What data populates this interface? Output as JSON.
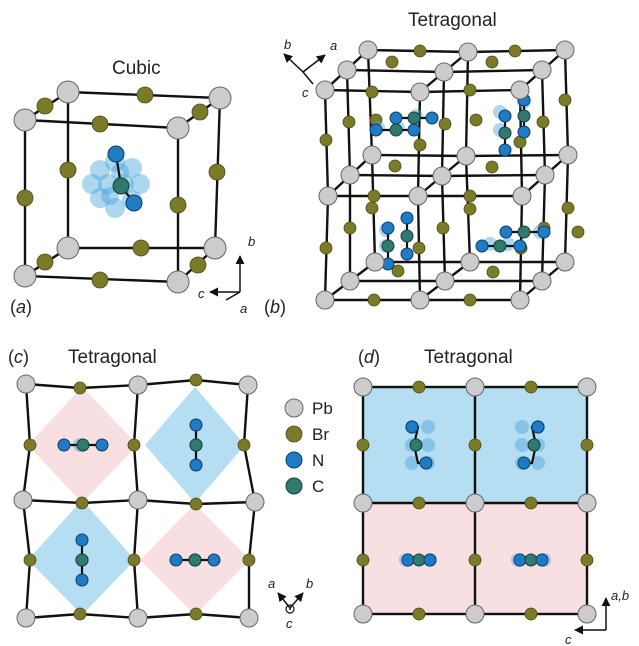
{
  "panels": {
    "a": {
      "label_open": "(",
      "letter": "a",
      "label_close": ")",
      "title": "Cubic",
      "axes": {
        "b": "b",
        "c": "c",
        "a": "a"
      }
    },
    "b": {
      "label_open": "(",
      "letter": "b",
      "label_close": ")",
      "title": "Tetragonal",
      "axes": {
        "b": "b",
        "a": "a",
        "c": "c"
      }
    },
    "c": {
      "label_open": "(",
      "letter": "c",
      "label_close": ")",
      "title": "Tetragonal",
      "axes": {
        "a": "a",
        "b": "b",
        "c": "c"
      }
    },
    "d": {
      "label_open": "(",
      "letter": "d",
      "label_close": ")",
      "title": "Tetragonal",
      "axes": {
        "ab": "a,b",
        "c": "c"
      }
    }
  },
  "legend": [
    {
      "label": "Pb",
      "color": "#cccccc"
    },
    {
      "label": "Br",
      "color": "#7b7a29"
    },
    {
      "label": "N",
      "color": "#1f7bc4"
    },
    {
      "label": "C",
      "color": "#2f7a6e"
    }
  ],
  "colors": {
    "pb": "#cccccc",
    "br": "#7b7a29",
    "n": "#1f7bc4",
    "c": "#2f7a6e",
    "blue_tile": "#b6def2",
    "pink_tile": "#f7dfe2",
    "ghost": "#4aa3dc"
  }
}
